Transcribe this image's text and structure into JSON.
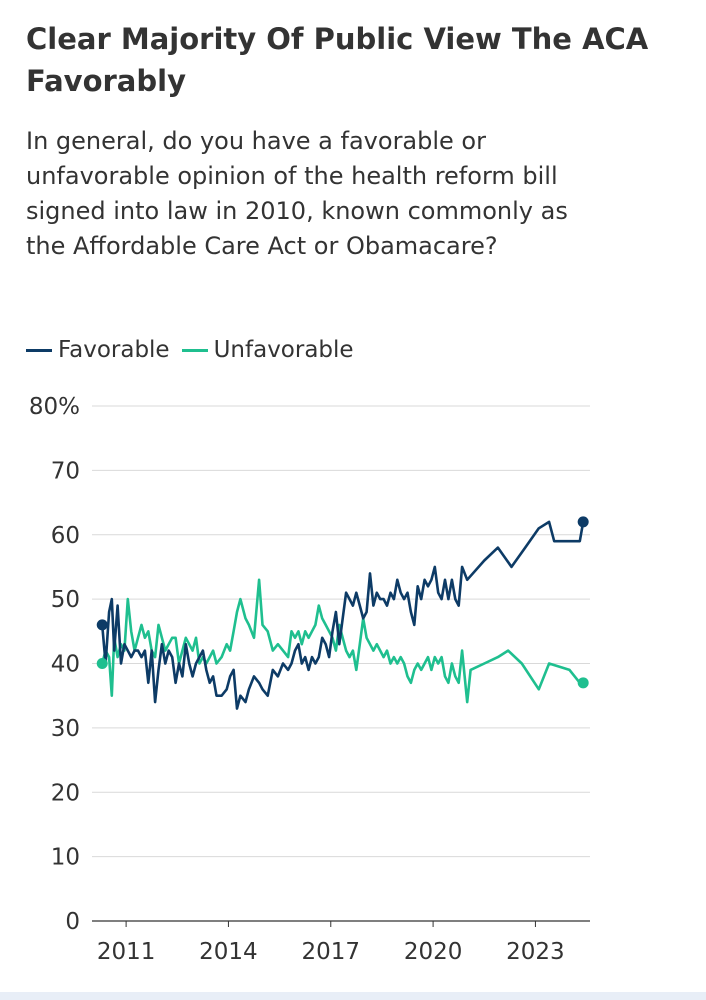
{
  "chart_data": {
    "type": "line",
    "title": "Clear Majority Of Public View The ACA Favorably",
    "subtitle": "In general, do you have a favorable or unfavorable opinion of the health reform bill signed into law in 2010, known commonly as the Affordable Care Act or Obamacare?",
    "xlabel": "",
    "ylabel": "",
    "x_ticks": [
      2011,
      2014,
      2017,
      2020,
      2023
    ],
    "x_ticks_label": [
      "2011",
      "2014",
      "2017",
      "2020",
      "2023"
    ],
    "y_ticks": [
      0,
      10,
      20,
      30,
      40,
      50,
      60,
      70,
      80
    ],
    "y_tick_labels": [
      "0",
      "10",
      "20",
      "30",
      "40",
      "50",
      "60",
      "70",
      "80%"
    ],
    "xlim": [
      2010.0,
      2024.6
    ],
    "ylim": [
      0,
      80
    ],
    "grid": true,
    "legend_position": "top-left",
    "series": [
      {
        "name": "Favorable",
        "color": "#0d3b66",
        "end_markers": true,
        "points": [
          [
            2010.3,
            46
          ],
          [
            2010.4,
            40
          ],
          [
            2010.5,
            48
          ],
          [
            2010.58,
            50
          ],
          [
            2010.65,
            42
          ],
          [
            2010.75,
            49
          ],
          [
            2010.85,
            40
          ],
          [
            2010.95,
            43
          ],
          [
            2011.05,
            42
          ],
          [
            2011.15,
            41
          ],
          [
            2011.25,
            42
          ],
          [
            2011.35,
            42
          ],
          [
            2011.45,
            41
          ],
          [
            2011.55,
            42
          ],
          [
            2011.65,
            37
          ],
          [
            2011.75,
            42
          ],
          [
            2011.85,
            34
          ],
          [
            2011.95,
            39
          ],
          [
            2012.05,
            43
          ],
          [
            2012.15,
            40
          ],
          [
            2012.25,
            42
          ],
          [
            2012.35,
            41
          ],
          [
            2012.45,
            37
          ],
          [
            2012.55,
            40
          ],
          [
            2012.65,
            38
          ],
          [
            2012.75,
            43
          ],
          [
            2012.85,
            40
          ],
          [
            2012.95,
            38
          ],
          [
            2013.05,
            40
          ],
          [
            2013.15,
            41
          ],
          [
            2013.25,
            42
          ],
          [
            2013.35,
            39
          ],
          [
            2013.45,
            37
          ],
          [
            2013.55,
            38
          ],
          [
            2013.65,
            35
          ],
          [
            2013.8,
            35
          ],
          [
            2013.95,
            36
          ],
          [
            2014.05,
            38
          ],
          [
            2014.15,
            39
          ],
          [
            2014.25,
            33
          ],
          [
            2014.35,
            35
          ],
          [
            2014.5,
            34
          ],
          [
            2014.6,
            36
          ],
          [
            2014.75,
            38
          ],
          [
            2014.9,
            37
          ],
          [
            2015.0,
            36
          ],
          [
            2015.15,
            35
          ],
          [
            2015.3,
            39
          ],
          [
            2015.45,
            38
          ],
          [
            2015.6,
            40
          ],
          [
            2015.75,
            39
          ],
          [
            2015.85,
            40
          ],
          [
            2015.95,
            42
          ],
          [
            2016.05,
            43
          ],
          [
            2016.15,
            40
          ],
          [
            2016.25,
            41
          ],
          [
            2016.35,
            39
          ],
          [
            2016.45,
            41
          ],
          [
            2016.55,
            40
          ],
          [
            2016.65,
            41
          ],
          [
            2016.75,
            44
          ],
          [
            2016.85,
            43
          ],
          [
            2016.95,
            41
          ],
          [
            2017.05,
            45
          ],
          [
            2017.15,
            48
          ],
          [
            2017.25,
            43
          ],
          [
            2017.35,
            47
          ],
          [
            2017.45,
            51
          ],
          [
            2017.55,
            50
          ],
          [
            2017.65,
            49
          ],
          [
            2017.75,
            51
          ],
          [
            2017.85,
            49
          ],
          [
            2017.95,
            47
          ],
          [
            2018.05,
            48
          ],
          [
            2018.15,
            54
          ],
          [
            2018.25,
            49
          ],
          [
            2018.35,
            51
          ],
          [
            2018.45,
            50
          ],
          [
            2018.55,
            50
          ],
          [
            2018.65,
            49
          ],
          [
            2018.75,
            51
          ],
          [
            2018.85,
            50
          ],
          [
            2018.95,
            53
          ],
          [
            2019.05,
            51
          ],
          [
            2019.15,
            50
          ],
          [
            2019.25,
            51
          ],
          [
            2019.35,
            48
          ],
          [
            2019.45,
            46
          ],
          [
            2019.55,
            52
          ],
          [
            2019.65,
            50
          ],
          [
            2019.75,
            53
          ],
          [
            2019.85,
            52
          ],
          [
            2019.95,
            53
          ],
          [
            2020.05,
            55
          ],
          [
            2020.15,
            51
          ],
          [
            2020.25,
            50
          ],
          [
            2020.35,
            53
          ],
          [
            2020.45,
            50
          ],
          [
            2020.55,
            53
          ],
          [
            2020.65,
            50
          ],
          [
            2020.75,
            49
          ],
          [
            2020.85,
            55
          ],
          [
            2021.0,
            53
          ],
          [
            2021.5,
            56
          ],
          [
            2021.9,
            58
          ],
          [
            2022.3,
            55
          ],
          [
            2022.7,
            58
          ],
          [
            2023.1,
            61
          ],
          [
            2023.4,
            62
          ],
          [
            2023.55,
            59
          ],
          [
            2024.0,
            59
          ],
          [
            2024.3,
            59
          ],
          [
            2024.4,
            62
          ]
        ]
      },
      {
        "name": "Unfavorable",
        "color": "#1fbf8f",
        "end_markers": true,
        "points": [
          [
            2010.3,
            40
          ],
          [
            2010.4,
            42
          ],
          [
            2010.5,
            41
          ],
          [
            2010.58,
            35
          ],
          [
            2010.65,
            44
          ],
          [
            2010.75,
            41
          ],
          [
            2010.85,
            43
          ],
          [
            2010.95,
            42
          ],
          [
            2011.05,
            50
          ],
          [
            2011.15,
            45
          ],
          [
            2011.25,
            42
          ],
          [
            2011.35,
            44
          ],
          [
            2011.45,
            46
          ],
          [
            2011.55,
            44
          ],
          [
            2011.65,
            45
          ],
          [
            2011.75,
            42
          ],
          [
            2011.85,
            41
          ],
          [
            2011.95,
            46
          ],
          [
            2012.05,
            44
          ],
          [
            2012.15,
            42
          ],
          [
            2012.25,
            43
          ],
          [
            2012.35,
            44
          ],
          [
            2012.45,
            44
          ],
          [
            2012.55,
            40
          ],
          [
            2012.65,
            42
          ],
          [
            2012.75,
            44
          ],
          [
            2012.85,
            43
          ],
          [
            2012.95,
            42
          ],
          [
            2013.05,
            44
          ],
          [
            2013.15,
            40
          ],
          [
            2013.25,
            41
          ],
          [
            2013.35,
            40
          ],
          [
            2013.45,
            41
          ],
          [
            2013.55,
            42
          ],
          [
            2013.65,
            40
          ],
          [
            2013.8,
            41
          ],
          [
            2013.95,
            43
          ],
          [
            2014.05,
            42
          ],
          [
            2014.15,
            45
          ],
          [
            2014.25,
            48
          ],
          [
            2014.35,
            50
          ],
          [
            2014.5,
            47
          ],
          [
            2014.6,
            46
          ],
          [
            2014.75,
            44
          ],
          [
            2014.9,
            53
          ],
          [
            2015.0,
            46
          ],
          [
            2015.15,
            45
          ],
          [
            2015.3,
            42
          ],
          [
            2015.45,
            43
          ],
          [
            2015.6,
            42
          ],
          [
            2015.75,
            41
          ],
          [
            2015.85,
            45
          ],
          [
            2015.95,
            44
          ],
          [
            2016.05,
            45
          ],
          [
            2016.15,
            43
          ],
          [
            2016.25,
            45
          ],
          [
            2016.35,
            44
          ],
          [
            2016.45,
            45
          ],
          [
            2016.55,
            46
          ],
          [
            2016.65,
            49
          ],
          [
            2016.75,
            47
          ],
          [
            2016.85,
            46
          ],
          [
            2016.95,
            45
          ],
          [
            2017.05,
            44
          ],
          [
            2017.15,
            42
          ],
          [
            2017.25,
            46
          ],
          [
            2017.35,
            44
          ],
          [
            2017.45,
            42
          ],
          [
            2017.55,
            41
          ],
          [
            2017.65,
            42
          ],
          [
            2017.75,
            39
          ],
          [
            2017.85,
            43
          ],
          [
            2017.95,
            47
          ],
          [
            2018.05,
            44
          ],
          [
            2018.15,
            43
          ],
          [
            2018.25,
            42
          ],
          [
            2018.35,
            43
          ],
          [
            2018.45,
            42
          ],
          [
            2018.55,
            41
          ],
          [
            2018.65,
            42
          ],
          [
            2018.75,
            40
          ],
          [
            2018.85,
            41
          ],
          [
            2018.95,
            40
          ],
          [
            2019.05,
            41
          ],
          [
            2019.15,
            40
          ],
          [
            2019.25,
            38
          ],
          [
            2019.35,
            37
          ],
          [
            2019.45,
            39
          ],
          [
            2019.55,
            40
          ],
          [
            2019.65,
            39
          ],
          [
            2019.75,
            40
          ],
          [
            2019.85,
            41
          ],
          [
            2019.95,
            39
          ],
          [
            2020.05,
            41
          ],
          [
            2020.15,
            40
          ],
          [
            2020.25,
            41
          ],
          [
            2020.35,
            38
          ],
          [
            2020.45,
            37
          ],
          [
            2020.55,
            40
          ],
          [
            2020.65,
            38
          ],
          [
            2020.75,
            37
          ],
          [
            2020.85,
            42
          ],
          [
            2021.0,
            34
          ],
          [
            2021.1,
            39
          ],
          [
            2021.5,
            40
          ],
          [
            2021.9,
            41
          ],
          [
            2022.2,
            42
          ],
          [
            2022.6,
            40
          ],
          [
            2023.1,
            36
          ],
          [
            2023.4,
            40
          ],
          [
            2024.0,
            39
          ],
          [
            2024.3,
            37
          ],
          [
            2024.4,
            37
          ]
        ]
      }
    ]
  }
}
